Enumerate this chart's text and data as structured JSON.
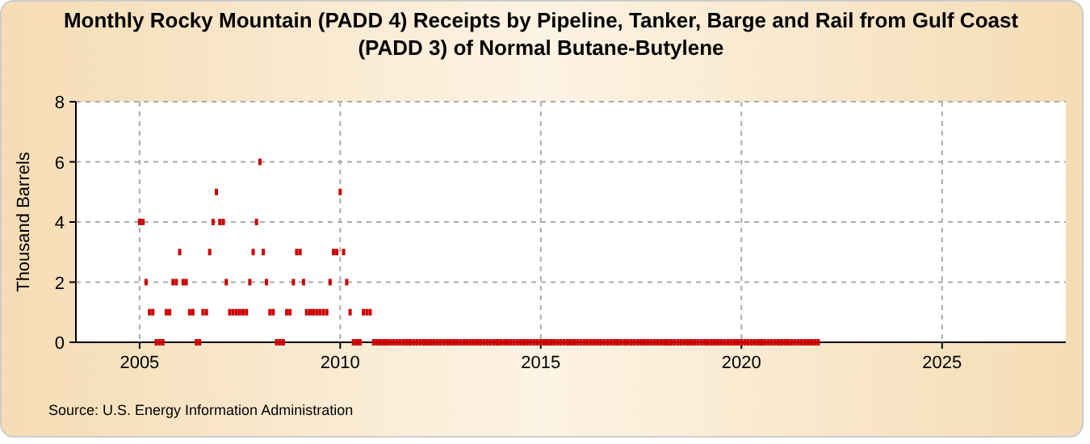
{
  "chart_data": {
    "type": "scatter",
    "title": "Monthly Rocky Mountain (PADD 4) Receipts by Pipeline, Tanker, Barge and Rail from Gulf Coast (PADD 3) of Normal Butane-Butylene",
    "ylabel": "Thousand Barrels",
    "annotations": [
      "Source: U.S. Energy Information Administration"
    ],
    "x": [
      "2005-01",
      "2005-02",
      "2005-03",
      "2005-04",
      "2005-05",
      "2005-06",
      "2005-07",
      "2005-08",
      "2005-09",
      "2005-10",
      "2005-11",
      "2005-12",
      "2006-01",
      "2006-02",
      "2006-03",
      "2006-04",
      "2006-05",
      "2006-06",
      "2006-07",
      "2006-08",
      "2006-09",
      "2006-10",
      "2006-11",
      "2006-12",
      "2007-01",
      "2007-02",
      "2007-03",
      "2007-04",
      "2007-05",
      "2007-06",
      "2007-07",
      "2007-08",
      "2007-09",
      "2007-10",
      "2007-11",
      "2007-12",
      "2008-01",
      "2008-02",
      "2008-03",
      "2008-04",
      "2008-05",
      "2008-06",
      "2008-07",
      "2008-08",
      "2008-09",
      "2008-10",
      "2008-11",
      "2008-12",
      "2009-01",
      "2009-02",
      "2009-03",
      "2009-04",
      "2009-05",
      "2009-06",
      "2009-07",
      "2009-08",
      "2009-09",
      "2009-10",
      "2009-11",
      "2009-12",
      "2010-01",
      "2010-02",
      "2010-03",
      "2010-04",
      "2010-05",
      "2010-06",
      "2010-07",
      "2010-08",
      "2010-09",
      "2010-10",
      "2010-11",
      "2010-12",
      "2011-01",
      "2011-02",
      "2011-03",
      "2011-04",
      "2011-05",
      "2011-06",
      "2011-07",
      "2011-08",
      "2011-09",
      "2011-10",
      "2011-11",
      "2011-12",
      "2012-01",
      "2012-02",
      "2012-03",
      "2012-04",
      "2012-05",
      "2012-06",
      "2012-07",
      "2012-08",
      "2012-09",
      "2012-10",
      "2012-11",
      "2012-12",
      "2013-01",
      "2013-02",
      "2013-03",
      "2013-04",
      "2013-05",
      "2013-06",
      "2013-07",
      "2013-08",
      "2013-09",
      "2013-10",
      "2013-11",
      "2013-12",
      "2014-01",
      "2014-02",
      "2014-03",
      "2014-04",
      "2014-05",
      "2014-06",
      "2014-07",
      "2014-08",
      "2014-09",
      "2014-10",
      "2014-11",
      "2014-12",
      "2015-01",
      "2015-02",
      "2015-03",
      "2015-04",
      "2015-05",
      "2015-06",
      "2015-07",
      "2015-08",
      "2015-09",
      "2015-10",
      "2015-11",
      "2015-12",
      "2016-01",
      "2016-02",
      "2016-03",
      "2016-04",
      "2016-05",
      "2016-06",
      "2016-07",
      "2016-08",
      "2016-09",
      "2016-10",
      "2016-11",
      "2016-12",
      "2017-01",
      "2017-02",
      "2017-03",
      "2017-04",
      "2017-05",
      "2017-06",
      "2017-07",
      "2017-08",
      "2017-09",
      "2017-10",
      "2017-11",
      "2017-12",
      "2018-01",
      "2018-02",
      "2018-03",
      "2018-04",
      "2018-05",
      "2018-06",
      "2018-07",
      "2018-08",
      "2018-09",
      "2018-10",
      "2018-11",
      "2018-12",
      "2019-01",
      "2019-02",
      "2019-03",
      "2019-04",
      "2019-05",
      "2019-06",
      "2019-07",
      "2019-08",
      "2019-09",
      "2019-10",
      "2019-11",
      "2019-12",
      "2020-01",
      "2020-02",
      "2020-03",
      "2020-04",
      "2020-05",
      "2020-06",
      "2020-07",
      "2020-08",
      "2020-09",
      "2020-10",
      "2020-11",
      "2020-12",
      "2021-01",
      "2021-02",
      "2021-03",
      "2021-04",
      "2021-05",
      "2021-06",
      "2021-07",
      "2021-08",
      "2021-09",
      "2021-10",
      "2021-11",
      "2021-12"
    ],
    "values": [
      4,
      4,
      2,
      1,
      1,
      0,
      0,
      0,
      1,
      1,
      2,
      2,
      3,
      2,
      2,
      1,
      1,
      0,
      0,
      1,
      1,
      3,
      4,
      5,
      4,
      4,
      2,
      1,
      1,
      1,
      1,
      1,
      1,
      2,
      3,
      4,
      6,
      3,
      2,
      1,
      1,
      0,
      0,
      0,
      1,
      1,
      2,
      3,
      3,
      2,
      1,
      1,
      1,
      1,
      1,
      1,
      1,
      2,
      3,
      3,
      5,
      3,
      2,
      1,
      0,
      0,
      0,
      1,
      1,
      1,
      0,
      0,
      0,
      0,
      0,
      0,
      0,
      0,
      0,
      0,
      0,
      0,
      0,
      0,
      0,
      0,
      0,
      0,
      0,
      0,
      0,
      0,
      0,
      0,
      0,
      0,
      0,
      0,
      0,
      0,
      0,
      0,
      0,
      0,
      0,
      0,
      0,
      0,
      0,
      0,
      0,
      0,
      0,
      0,
      0,
      0,
      0,
      0,
      0,
      0,
      0,
      0,
      0,
      0,
      0,
      0,
      0,
      0,
      0,
      0,
      0,
      0,
      0,
      0,
      0,
      0,
      0,
      0,
      0,
      0,
      0,
      0,
      0,
      0,
      0,
      0,
      0,
      0,
      0,
      0,
      0,
      0,
      0,
      0,
      0,
      0,
      0,
      0,
      0,
      0,
      0,
      0,
      0,
      0,
      0,
      0,
      0,
      0,
      0,
      0,
      0,
      0,
      0,
      0,
      0,
      0,
      0,
      0,
      0,
      0,
      0,
      0,
      0,
      0,
      0,
      0,
      0,
      0,
      0,
      0,
      0,
      0,
      0,
      0,
      0,
      0,
      0,
      0,
      0,
      0,
      0,
      0,
      0,
      0
    ],
    "color": "#cc0000",
    "marker": "square",
    "xlim": [
      "2003-06",
      "2028-02"
    ],
    "xticks": [
      "2005",
      "2010",
      "2015",
      "2020",
      "2025"
    ],
    "ylim": [
      0,
      8
    ],
    "yticks": [
      0,
      2,
      4,
      6,
      8
    ],
    "grid": true
  }
}
